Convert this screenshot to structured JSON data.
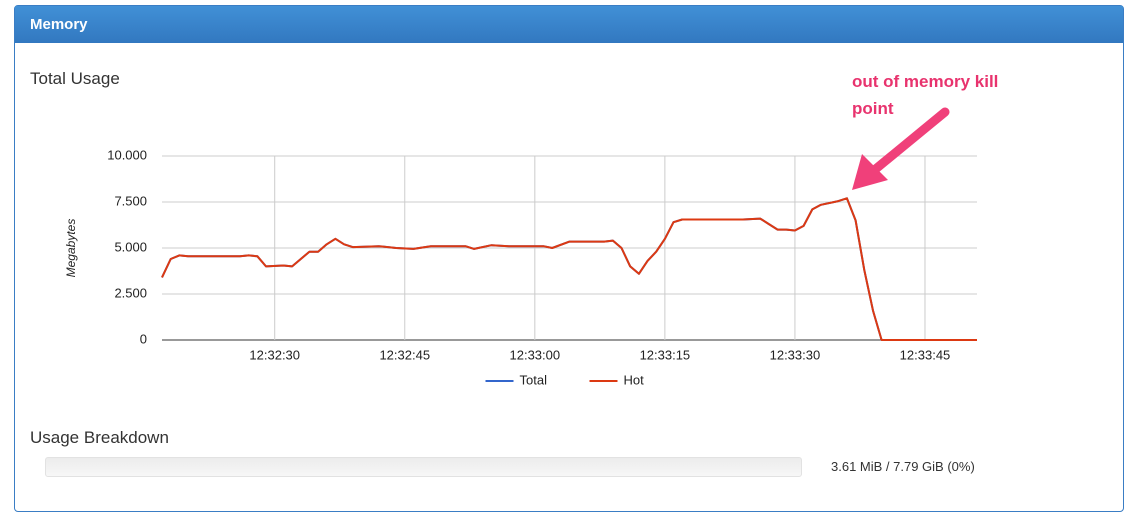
{
  "panel": {
    "title": "Memory"
  },
  "chart_data": {
    "type": "line",
    "title": "Total Usage",
    "y_label": "Megabytes",
    "x": [
      "12:32:17",
      "12:32:18",
      "12:32:19",
      "12:32:20",
      "12:32:22",
      "12:32:24",
      "12:32:26",
      "12:32:27",
      "12:32:28",
      "12:32:29",
      "12:32:31",
      "12:32:32",
      "12:32:34",
      "12:32:35",
      "12:32:36",
      "12:32:37",
      "12:32:38",
      "12:32:39",
      "12:32:42",
      "12:32:44",
      "12:32:46",
      "12:32:48",
      "12:32:52",
      "12:32:53",
      "12:32:55",
      "12:32:57",
      "12:33:00",
      "12:33:01",
      "12:33:02",
      "12:33:04",
      "12:33:06",
      "12:33:08",
      "12:33:09",
      "12:33:10",
      "12:33:11",
      "12:33:12",
      "12:33:13",
      "12:33:14",
      "12:33:15",
      "12:33:16",
      "12:33:17",
      "12:33:20",
      "12:33:24",
      "12:33:26",
      "12:33:27",
      "12:33:28",
      "12:33:29",
      "12:33:30",
      "12:33:31",
      "12:33:32",
      "12:33:33",
      "12:33:35",
      "12:33:36",
      "12:33:37",
      "12:33:38",
      "12:33:39",
      "12:33:40",
      "12:33:41",
      "12:33:42",
      "12:33:51"
    ],
    "series": [
      {
        "name": "Total",
        "color": "#3366cc",
        "values": [
          3.4,
          4.4,
          4.6,
          4.55,
          4.55,
          4.55,
          4.55,
          4.6,
          4.55,
          4.0,
          4.05,
          4.0,
          4.8,
          4.8,
          5.2,
          5.5,
          5.2,
          5.05,
          5.1,
          5.0,
          4.95,
          5.1,
          5.1,
          4.95,
          5.15,
          5.1,
          5.1,
          5.1,
          5.0,
          5.35,
          5.35,
          5.35,
          5.4,
          5.0,
          4.0,
          3.6,
          4.3,
          4.8,
          5.5,
          6.4,
          6.55,
          6.55,
          6.55,
          6.6,
          6.3,
          6.0,
          6.0,
          5.95,
          6.2,
          7.1,
          7.35,
          7.55,
          7.7,
          6.5,
          3.8,
          1.6,
          0,
          0,
          0,
          0
        ]
      },
      {
        "name": "Hot",
        "color": "#dc3912",
        "values": [
          3.4,
          4.4,
          4.6,
          4.55,
          4.55,
          4.55,
          4.55,
          4.6,
          4.55,
          4.0,
          4.05,
          4.0,
          4.8,
          4.8,
          5.2,
          5.5,
          5.2,
          5.05,
          5.1,
          5.0,
          4.95,
          5.1,
          5.1,
          4.95,
          5.15,
          5.1,
          5.1,
          5.1,
          5.0,
          5.35,
          5.35,
          5.35,
          5.4,
          5.0,
          4.0,
          3.6,
          4.3,
          4.8,
          5.5,
          6.4,
          6.55,
          6.55,
          6.55,
          6.6,
          6.3,
          6.0,
          6.0,
          5.95,
          6.2,
          7.1,
          7.35,
          7.55,
          7.7,
          6.5,
          3.8,
          1.6,
          0,
          0,
          0,
          0
        ]
      }
    ],
    "xlim": [
      "12:32:17",
      "12:33:51"
    ],
    "xticks": [
      "12:32:30",
      "12:32:45",
      "12:33:00",
      "12:33:15",
      "12:33:30",
      "12:33:45"
    ],
    "ylim": [
      0,
      10
    ],
    "yticks": [
      0,
      {
        "value": 2.5,
        "label": "2.500"
      },
      {
        "value": 5,
        "label": "5.000"
      },
      {
        "value": 7.5,
        "label": "7.500"
      },
      {
        "value": 10,
        "label": "10.000"
      }
    ],
    "grid": true,
    "legend": "bottom",
    "annotation": "out of memory kill point"
  },
  "breakdown": {
    "title": "Usage Breakdown",
    "label": "3.61 MiB / 7.79 GiB (0%)"
  }
}
